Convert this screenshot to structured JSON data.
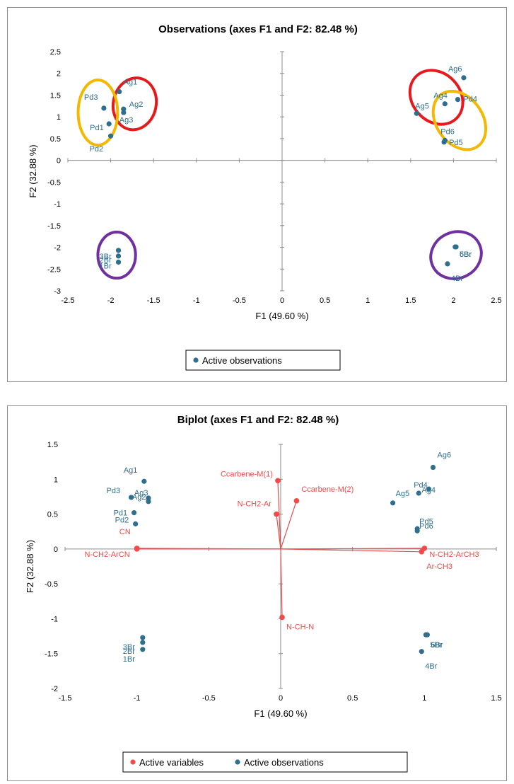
{
  "colors": {
    "observation": "#2e6f8e",
    "variable": "#f04a4a",
    "loading_line": "#e84a4a",
    "cluster_red": "#e8191d",
    "cluster_yellow": "#f5b800",
    "cluster_purple": "#7030a0",
    "axis": "#8c8c8c"
  },
  "chart_data": [
    {
      "type": "scatter",
      "title": "Observations (axes F1 and F2: 82.48 %)",
      "xlabel": "F1 (49.60 %)",
      "ylabel": "F2 (32.88 %)",
      "xlim": [
        -2.5,
        2.5
      ],
      "ylim": [
        -3,
        2.5
      ],
      "xticks": [
        "-2.5",
        "-2",
        "-1.5",
        "-1",
        "-0.5",
        "0",
        "0.5",
        "1",
        "1.5",
        "2",
        "2.5"
      ],
      "yticks": [
        "2.5",
        "2",
        "1.5",
        "1",
        "0.5",
        "0",
        "-0.5",
        "-1",
        "-1.5",
        "-2",
        "-2.5",
        "-3"
      ],
      "legend": {
        "placement": "bottom",
        "entries": [
          "Active observations"
        ]
      },
      "observations": [
        {
          "label": "Ag1",
          "x": -1.9,
          "y": 1.58
        },
        {
          "label": "Ag2",
          "x": -1.85,
          "y": 1.18
        },
        {
          "label": "Ag3",
          "x": -1.85,
          "y": 1.1
        },
        {
          "label": "Pd3",
          "x": -2.08,
          "y": 1.2
        },
        {
          "label": "Pd1",
          "x": -2.02,
          "y": 0.84
        },
        {
          "label": "Pd2",
          "x": -2.0,
          "y": 0.56
        },
        {
          "label": "Ag6",
          "x": 2.12,
          "y": 1.9
        },
        {
          "label": "Ag4",
          "x": 1.9,
          "y": 1.3
        },
        {
          "label": "Pd4",
          "x": 2.05,
          "y": 1.4
        },
        {
          "label": "Ag5",
          "x": 1.57,
          "y": 1.08
        },
        {
          "label": "Pd6",
          "x": 1.9,
          "y": 0.46
        },
        {
          "label": "Pd5",
          "x": 1.89,
          "y": 0.42
        },
        {
          "label": "3Br",
          "x": -1.91,
          "y": -2.07
        },
        {
          "label": "2Br",
          "x": -1.91,
          "y": -2.2
        },
        {
          "label": "1Br",
          "x": -1.91,
          "y": -2.34
        },
        {
          "label": "5Br",
          "x": 2.02,
          "y": -1.99
        },
        {
          "label": "6Br",
          "x": 2.03,
          "y": -1.99
        },
        {
          "label": "4Br",
          "x": 1.93,
          "y": -2.38
        }
      ],
      "clusters": [
        {
          "color": "red",
          "cx": -1.72,
          "cy": 1.3,
          "rx": 0.25,
          "ry": 0.6,
          "angle": 12
        },
        {
          "color": "yellow",
          "cx": -2.15,
          "cy": 1.1,
          "rx": 0.23,
          "ry": 0.75,
          "angle": 0
        },
        {
          "color": "red",
          "cx": 1.8,
          "cy": 1.45,
          "rx": 0.28,
          "ry": 0.67,
          "angle": -42
        },
        {
          "color": "yellow",
          "cx": 2.07,
          "cy": 0.92,
          "rx": 0.27,
          "ry": 0.73,
          "angle": -35
        },
        {
          "color": "purple",
          "cx": -1.93,
          "cy": -2.18,
          "rx": 0.22,
          "ry": 0.53,
          "angle": 0
        },
        {
          "color": "purple",
          "cx": 2.03,
          "cy": -2.18,
          "rx": 0.3,
          "ry": 0.53,
          "angle": -25
        }
      ]
    },
    {
      "type": "scatter",
      "title": "Biplot (axes F1 and F2: 82.48 %)",
      "xlabel": "F1 (49.60 %)",
      "ylabel": "F2 (32.88 %)",
      "xlim": [
        -1.5,
        1.5
      ],
      "ylim": [
        -2,
        1.5
      ],
      "xticks": [
        "-1.5",
        "-1",
        "-0.5",
        "0",
        "0.5",
        "1",
        "1.5"
      ],
      "yticks": [
        "1.5",
        "1",
        "0.5",
        "0",
        "-0.5",
        "-1",
        "-1.5",
        "-2"
      ],
      "legend": {
        "placement": "bottom",
        "entries": [
          "Active variables",
          "Active observations"
        ]
      },
      "variables": [
        {
          "label": "Ccarbene-M(1)",
          "x": -0.02,
          "y": 0.98
        },
        {
          "label": "Ccarbene-M(2)",
          "x": 0.11,
          "y": 0.69
        },
        {
          "label": "N-CH2-Ar",
          "x": -0.03,
          "y": 0.5
        },
        {
          "label": "CN",
          "x": -1.0,
          "y": 0.01
        },
        {
          "label": "N-CH2-ArCN",
          "x": -1.0,
          "y": 0.0
        },
        {
          "label": "N-CH2-ArCH3",
          "x": 1.0,
          "y": 0.01
        },
        {
          "label": "Ar-CH3",
          "x": 0.98,
          "y": -0.04
        },
        {
          "label": "N-CH-N",
          "x": 0.01,
          "y": -0.98
        }
      ],
      "observations": [
        {
          "label": "Ag1",
          "x": -0.95,
          "y": 0.97
        },
        {
          "label": "Pd3",
          "x": -1.04,
          "y": 0.74
        },
        {
          "label": "Ag3",
          "x": -0.92,
          "y": 0.73
        },
        {
          "label": "Ag2",
          "x": -0.92,
          "y": 0.68
        },
        {
          "label": "Pd1",
          "x": -1.02,
          "y": 0.52
        },
        {
          "label": "Pd2",
          "x": -1.01,
          "y": 0.36
        },
        {
          "label": "Ag6",
          "x": 1.06,
          "y": 1.17
        },
        {
          "label": "Ag4",
          "x": 1.03,
          "y": 0.86
        },
        {
          "label": "Pd4",
          "x": 0.96,
          "y": 0.8
        },
        {
          "label": "Ag5",
          "x": 0.78,
          "y": 0.66
        },
        {
          "label": "Pd5",
          "x": 0.95,
          "y": 0.29
        },
        {
          "label": "Pd6",
          "x": 0.95,
          "y": 0.26
        },
        {
          "label": "3Br",
          "x": -0.96,
          "y": -1.27
        },
        {
          "label": "2Br",
          "x": -0.96,
          "y": -1.34
        },
        {
          "label": "1Br",
          "x": -0.96,
          "y": -1.44
        },
        {
          "label": "5Br",
          "x": 1.01,
          "y": -1.23
        },
        {
          "label": "6Br",
          "x": 1.02,
          "y": -1.23
        },
        {
          "label": "4Br",
          "x": 0.98,
          "y": -1.47
        }
      ]
    }
  ]
}
